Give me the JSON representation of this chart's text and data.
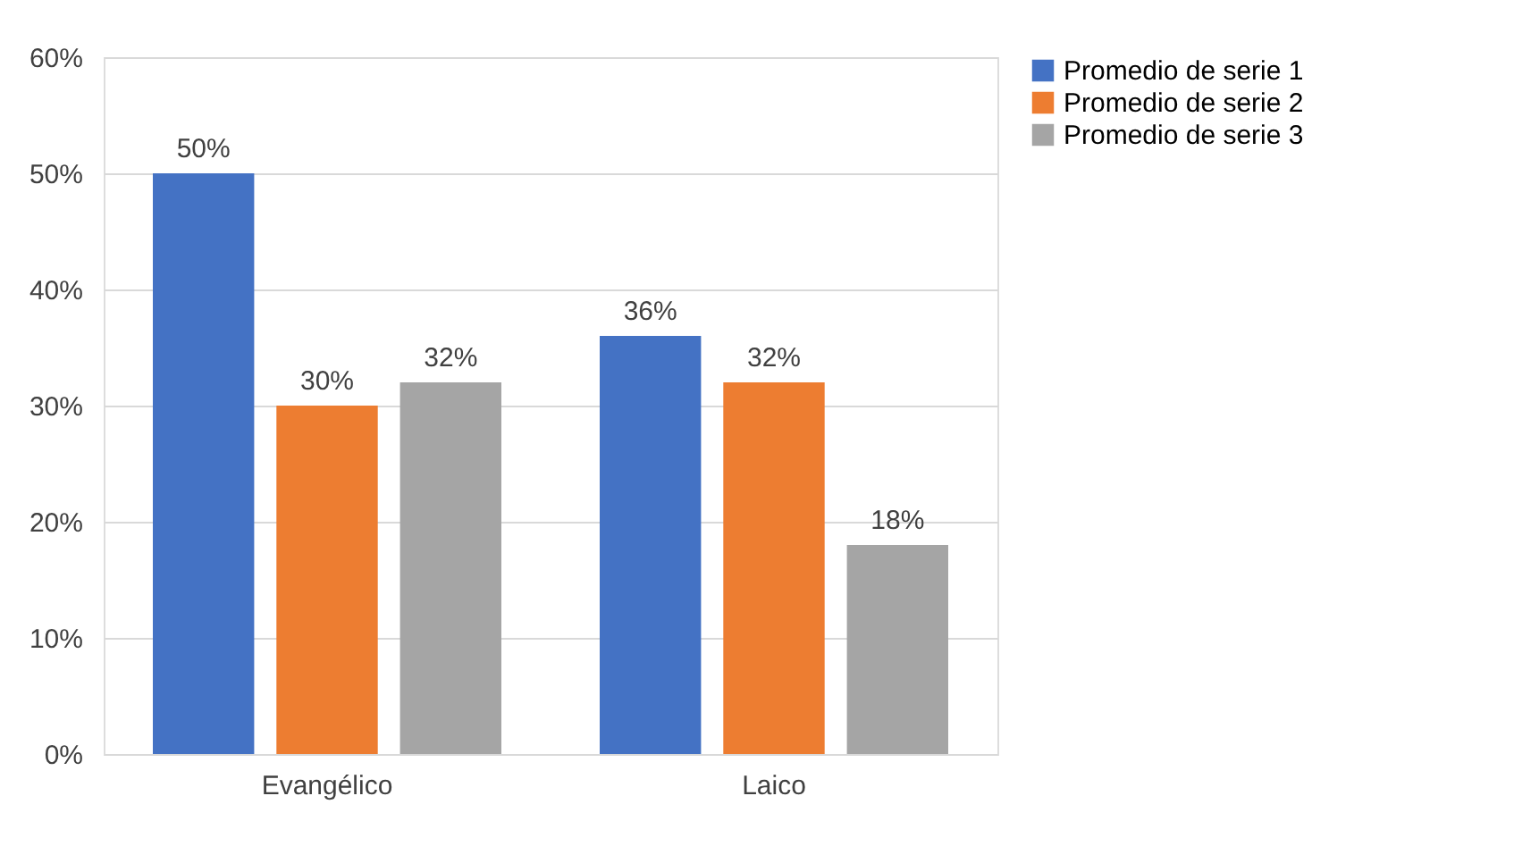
{
  "chart_data": {
    "type": "bar",
    "categories": [
      "Evangélico",
      "Laico"
    ],
    "series": [
      {
        "name": "Promedio de serie 1",
        "color": "#4472c4",
        "values": [
          50,
          36
        ],
        "value_labels": [
          "50%",
          "36%"
        ]
      },
      {
        "name": "Promedio de serie 2",
        "color": "#ed7d31",
        "values": [
          30,
          32
        ],
        "value_labels": [
          "30%",
          "32%"
        ]
      },
      {
        "name": "Promedio de serie 3",
        "color": "#a5a5a5",
        "values": [
          32,
          18
        ],
        "value_labels": [
          "32%",
          "18%"
        ]
      }
    ],
    "ylim": [
      0,
      60
    ],
    "yticks": [
      {
        "value": 0,
        "label": "0%"
      },
      {
        "value": 10,
        "label": "10%"
      },
      {
        "value": 20,
        "label": "20%"
      },
      {
        "value": 30,
        "label": "30%"
      },
      {
        "value": 40,
        "label": "40%"
      },
      {
        "value": 50,
        "label": "50%"
      },
      {
        "value": 60,
        "label": "60%"
      }
    ],
    "grid": "y",
    "legend": "right"
  }
}
